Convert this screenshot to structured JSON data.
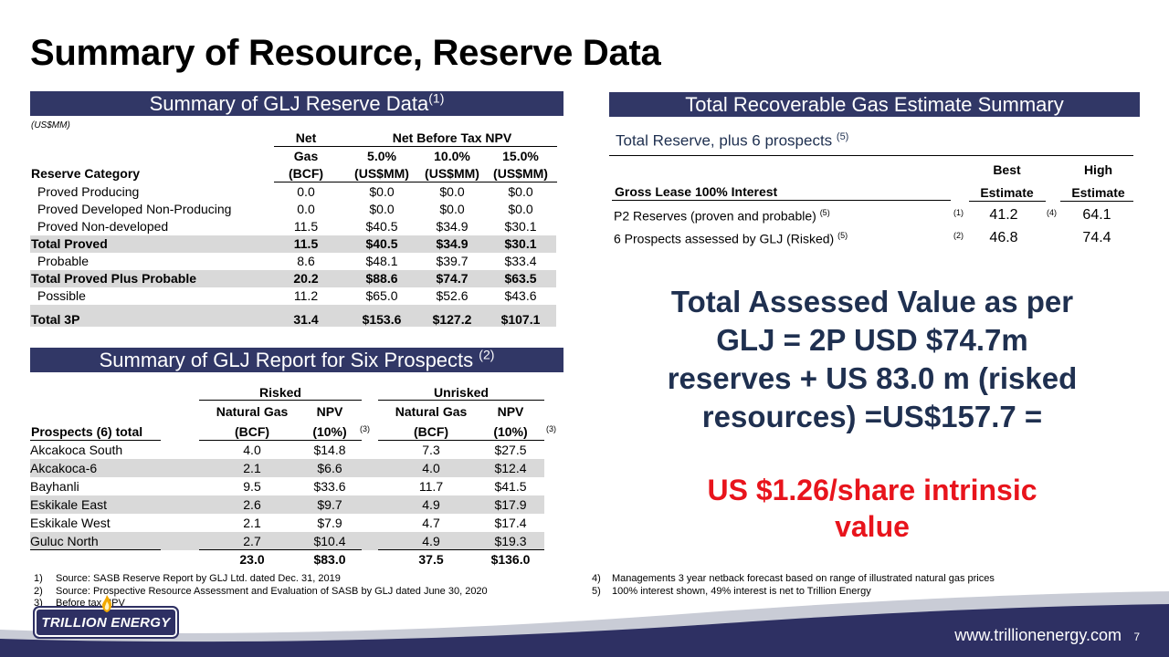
{
  "title": "Summary of Resource, Reserve Data",
  "reserve": {
    "header": "Summary of GLJ Reserve Data",
    "header_sup": "(1)",
    "units": "(US$MM)",
    "col_net": "Net",
    "col_npv": "Net Before Tax NPV",
    "col_gas": "Gas",
    "col_bcf": "(BCF)",
    "col_p5": "5.0%",
    "col_p10": "10.0%",
    "col_p15": "15.0%",
    "col_usd": "(US$MM)",
    "col_cat": "Reserve Category",
    "rows": [
      {
        "label": "Proved Producing",
        "gas": "0.0",
        "v5": "$0.0",
        "v10": "$0.0",
        "v15": "$0.0"
      },
      {
        "label": "Proved Developed Non-Producing",
        "gas": "0.0",
        "v5": "$0.0",
        "v10": "$0.0",
        "v15": "$0.0"
      },
      {
        "label": "Proved Non-developed",
        "gas": "11.5",
        "v5": "$40.5",
        "v10": "$34.9",
        "v15": "$30.1"
      },
      {
        "label": "Total Proved",
        "gas": "11.5",
        "v5": "$40.5",
        "v10": "$34.9",
        "v15": "$30.1"
      },
      {
        "label": "Probable",
        "gas": "8.6",
        "v5": "$48.1",
        "v10": "$39.7",
        "v15": "$33.4"
      },
      {
        "label": "Total Proved Plus Probable",
        "gas": "20.2",
        "v5": "$88.6",
        "v10": "$74.7",
        "v15": "$63.5"
      },
      {
        "label": "Possible",
        "gas": "11.2",
        "v5": "$65.0",
        "v10": "$52.6",
        "v15": "$43.6"
      },
      {
        "label": "Total 3P",
        "gas": "31.4",
        "v5": "$153.6",
        "v10": "$127.2",
        "v15": "$107.1"
      }
    ]
  },
  "prospects": {
    "header": "Summary of GLJ Report for Six Prospects",
    "header_sup": "(2)",
    "risked": "Risked",
    "unrisked": "Unrisked",
    "natgas": "Natural Gas",
    "npv": "NPV",
    "bcf": "(BCF)",
    "pct": "(10%)",
    "note3": "(3)",
    "total_label": "Prospects (6) total",
    "rows": [
      {
        "name": "Akcakoca South",
        "rg": "4.0",
        "rn": "$14.8",
        "ug": "7.3",
        "un": "$27.5"
      },
      {
        "name": "Akcakoca-6",
        "rg": "2.1",
        "rn": "$6.6",
        "ug": "4.0",
        "un": "$12.4"
      },
      {
        "name": "Bayhanli",
        "rg": "9.5",
        "rn": "$33.6",
        "ug": "11.7",
        "un": "$41.5"
      },
      {
        "name": "Eskikale East",
        "rg": "2.6",
        "rn": "$9.7",
        "ug": "4.9",
        "un": "$17.9"
      },
      {
        "name": "Eskikale West",
        "rg": "2.1",
        "rn": "$7.9",
        "ug": "4.7",
        "un": "$17.4"
      },
      {
        "name": "Guluc North",
        "rg": "2.7",
        "rn": "$10.4",
        "ug": "4.9",
        "un": "$19.3"
      }
    ],
    "totals": {
      "rg": "23.0",
      "rn": "$83.0",
      "ug": "37.5",
      "un": "$136.0"
    }
  },
  "recoverable": {
    "header": "Total Recoverable Gas Estimate Summary",
    "subtitle": "Total Reserve, plus 6 prospects",
    "subtitle_sup": "(5)",
    "col_label": "Gross Lease 100% Interest",
    "best1": "Best",
    "best2": "Estimate",
    "high1": "High",
    "high2": "Estimate",
    "rows": [
      {
        "label": "P2 Reserves (proven and probable)",
        "sup": "(5)",
        "n1": "(1)",
        "best": "41.2",
        "n2": "(4)",
        "high": "64.1"
      },
      {
        "label": "6 Prospects assessed by GLJ (Risked)",
        "sup": "(5)",
        "n1": "(2)",
        "best": "46.8",
        "n2": "",
        "high": "74.4"
      }
    ]
  },
  "summary_text": [
    "Total  Assessed Value as per",
    "GLJ = 2P USD $74.7m",
    "reserves + US 83.0 m (risked",
    "resources) =US$157.7 ="
  ],
  "highlight_text": [
    "US $1.26/share intrinsic",
    "value"
  ],
  "footnotes_left": [
    {
      "n": "1)",
      "t": "Source: SASB Reserve Report by GLJ Ltd. dated Dec. 31, 2019"
    },
    {
      "n": "2)",
      "t": "Source: Prospective Resource Assessment and Evaluation of SASB by GLJ  dated June 30, 2020"
    },
    {
      "n": "3)",
      "t": "Before tax NPV"
    }
  ],
  "footnotes_right": [
    {
      "n": "4)",
      "t": "Managements 3 year netback forecast based on range of illustrated natural gas prices"
    },
    {
      "n": "5)",
      "t": "100% interest shown, 49% interest is net to Trillion Energy"
    }
  ],
  "logo_text": "TRILLION ENERGY",
  "website": "www.trillionenergy.com",
  "page_number": "7",
  "colors": {
    "navy": "#313766",
    "title_navy": "#1f3050",
    "red": "#e8141c",
    "shade": "#d9d9d9",
    "wave": "#2e3063"
  }
}
